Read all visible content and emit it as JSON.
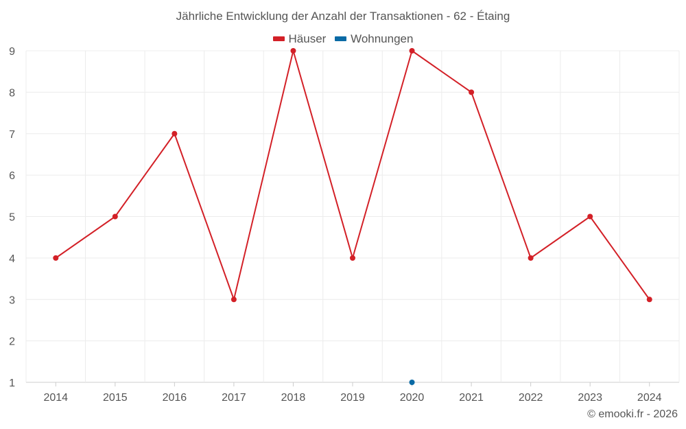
{
  "title": "Jährliche Entwicklung der Anzahl der Transaktionen - 62 - Étaing",
  "credit": "© emooki.fr - 2026",
  "chart_data": {
    "type": "line",
    "title": "Jährliche Entwicklung der Anzahl der Transaktionen - 62 - Étaing",
    "categories": [
      "2014",
      "2015",
      "2016",
      "2017",
      "2018",
      "2019",
      "2020",
      "2021",
      "2022",
      "2023",
      "2024"
    ],
    "series": [
      {
        "name": "Häuser",
        "color": "#d32027",
        "values": [
          4,
          5,
          7,
          3,
          9,
          4,
          9,
          8,
          4,
          5,
          3
        ]
      },
      {
        "name": "Wohnungen",
        "color": "#0a6aa5",
        "values": [
          null,
          null,
          null,
          null,
          null,
          null,
          1,
          null,
          null,
          null,
          null
        ]
      }
    ],
    "ylim": [
      1,
      9
    ],
    "yticks": [
      1,
      2,
      3,
      4,
      5,
      6,
      7,
      8,
      9
    ],
    "xlabel": "",
    "ylabel": "",
    "grid": true,
    "legend": "top-center"
  }
}
